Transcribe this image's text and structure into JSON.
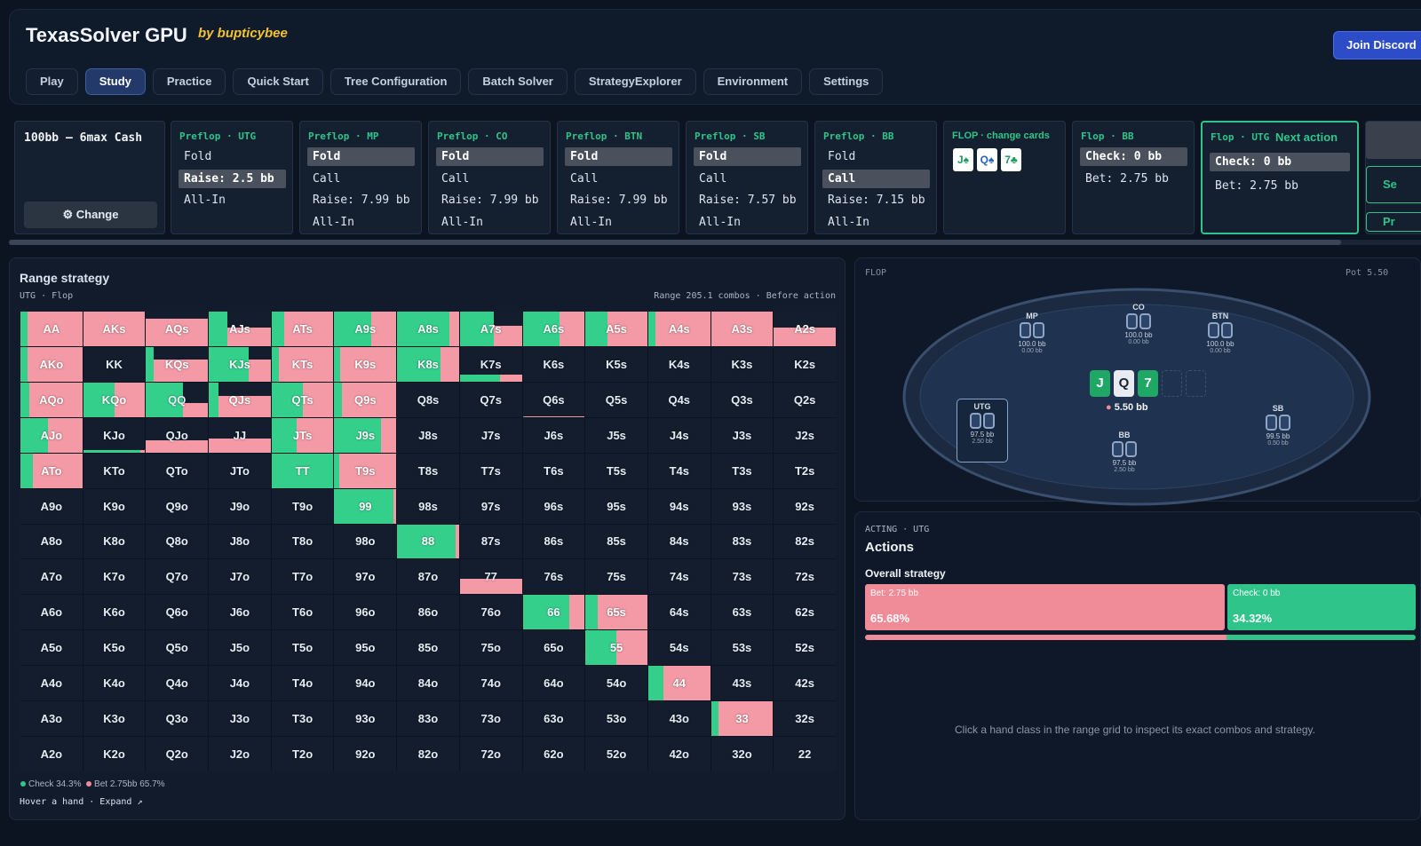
{
  "header": {
    "title": "TexasSolver GPU",
    "byline": "by bupticybee",
    "discord": "Join Discord"
  },
  "nav": [
    "Play",
    "Study",
    "Practice",
    "Quick Start",
    "Tree Configuration",
    "Batch Solver",
    "StrategyExplorer",
    "Environment",
    "Settings"
  ],
  "nav_active": 1,
  "stack": {
    "title": "100bb – 6max Cash",
    "change": "Change",
    "change_icon": "⚙"
  },
  "action_cards": [
    {
      "label": "Preflop · UTG",
      "options": [
        "Fold",
        "Raise: 2.5 bb",
        "All-In"
      ],
      "selected": 1
    },
    {
      "label": "Preflop · MP",
      "options": [
        "Fold",
        "Call",
        "Raise: 7.99 bb",
        "All-In"
      ],
      "selected": 0
    },
    {
      "label": "Preflop · CO",
      "options": [
        "Fold",
        "Call",
        "Raise: 7.99 bb",
        "All-In"
      ],
      "selected": 0
    },
    {
      "label": "Preflop · BTN",
      "options": [
        "Fold",
        "Call",
        "Raise: 7.99 bb",
        "All-In"
      ],
      "selected": 0
    },
    {
      "label": "Preflop · SB",
      "options": [
        "Fold",
        "Call",
        "Raise: 7.57 bb",
        "All-In"
      ],
      "selected": 0
    },
    {
      "label": "Preflop · BB",
      "options": [
        "Fold",
        "Call",
        "Raise: 7.15 bb",
        "All-In"
      ],
      "selected": 1
    }
  ],
  "flop_card": {
    "label": "FLOP · change cards",
    "cards": [
      {
        "t": "J♠",
        "c": "#1a9a5c"
      },
      {
        "t": "Q♠",
        "c": "#2a62b8"
      },
      {
        "t": "7♣",
        "c": "#1a9a5c"
      }
    ]
  },
  "flop_bb": {
    "label": "Flop · BB",
    "options": [
      "Check: 0 bb",
      "Bet: 2.75 bb"
    ],
    "selected": 0
  },
  "flop_utg": {
    "label": "Flop · UTG",
    "next": "Next action",
    "options": [
      "Check: 0 bb",
      "Bet: 2.75 bb"
    ],
    "selected": 0
  },
  "partial_buttons": [
    "Se",
    "Pr"
  ],
  "range": {
    "title": "Range strategy",
    "sub": "UTG · Flop",
    "info": "Range 205.1 combos · Before action",
    "legend": [
      {
        "text": "Check 34.3%",
        "color": "#2fc48a"
      },
      {
        "text": "Bet 2.75bb 65.7%",
        "color": "#f08b98"
      }
    ],
    "hint": "Hover a hand · Expand ↗"
  },
  "colors": {
    "check": "#35cf8c",
    "bet": "#f39aa6"
  },
  "range_mix": {
    "AA": [
      0,
      0.12,
      0
    ],
    "AKs": [
      0,
      0,
      0
    ],
    "AQs": [
      0,
      0,
      0.2
    ],
    "AJs": [
      0,
      0.3,
      0.45
    ],
    "ATs": [
      0,
      0.2,
      0
    ],
    "A9s": [
      0,
      0.6,
      0
    ],
    "A8s": [
      0,
      0.85,
      0
    ],
    "A7s": [
      0,
      0.55,
      0.4
    ],
    "A6s": [
      0,
      0.6,
      0
    ],
    "A5s": [
      0,
      0.35,
      0
    ],
    "A4s": [
      0,
      0.12,
      0
    ],
    "A3s": [
      0,
      0,
      0
    ],
    "A2s": [
      0,
      0,
      0.45
    ],
    "AKo": [
      0,
      0.12,
      0
    ],
    "KQs": [
      0,
      0.12,
      0.35
    ],
    "KJs": [
      0,
      0.65,
      0.35
    ],
    "KTs": [
      0,
      0.12,
      0
    ],
    "K9s": [
      0,
      0.1,
      0
    ],
    "K8s": [
      0,
      0.7,
      0
    ],
    "K7s": [
      2,
      0.65,
      0.2
    ],
    "AQo": [
      0,
      0.15,
      0
    ],
    "KQo": [
      0,
      0.5,
      0
    ],
    "QQ": [
      1,
      0.6,
      0.4
    ],
    "QJs": [
      0,
      0.15,
      0.4
    ],
    "QTs": [
      0,
      0.5,
      0
    ],
    "Q9s": [
      0,
      0.12,
      0
    ],
    "Q6s": [
      2,
      0.03,
      0.02
    ],
    "AJo": [
      0,
      0.45,
      0
    ],
    "KJo": [
      2,
      0.92,
      0.08
    ],
    "QJo": [
      1,
      0.0,
      0.35
    ],
    "JJ": [
      1,
      0.0,
      0.4
    ],
    "JTs": [
      0,
      0.4,
      0
    ],
    "J9s": [
      0,
      0.75,
      0
    ],
    "ATo": [
      0,
      0.2,
      0
    ],
    "TT": [
      0,
      1,
      0
    ],
    "T9s": [
      0,
      0.08,
      0
    ],
    "99": [
      0,
      0.95,
      0
    ],
    "88": [
      0,
      0.95,
      0
    ],
    "77": [
      1,
      0.0,
      0.45
    ],
    "66": [
      0,
      0.75,
      0
    ],
    "65s": [
      0,
      0.2,
      0
    ],
    "55": [
      0,
      0.5,
      0
    ],
    "44": [
      0,
      0.25,
      0
    ],
    "33": [
      0,
      0.12,
      0
    ]
  },
  "table": {
    "flop": "FLOP",
    "pot": "Pot 5.50",
    "board": [
      {
        "t": "J",
        "c": "#1ea765"
      },
      {
        "t": "Q",
        "c": "#ffffff"
      },
      {
        "t": "7",
        "c": "#1ea765"
      }
    ],
    "pot_amount": "5.50 bb",
    "seats": [
      {
        "name": "MP",
        "stack": "100.0 bb",
        "inv": "0.00 bb"
      },
      {
        "name": "CO",
        "stack": "100.0 bb",
        "inv": "0.00 bb"
      },
      {
        "name": "BTN",
        "stack": "100.0 bb",
        "inv": "0.00 bb"
      },
      {
        "name": "UTG",
        "stack": "97.5 bb",
        "inv": "2.50 bb"
      },
      {
        "name": "BB",
        "stack": "97.5 bb",
        "inv": "2.50 bb"
      },
      {
        "name": "SB",
        "stack": "99.5 bb",
        "inv": "0.50 bb"
      }
    ]
  },
  "actions": {
    "acting": "ACTING · UTG",
    "title": "Actions",
    "overall": "Overall strategy",
    "bet": {
      "label": "Bet: 2.75 bb",
      "pct": "65.68%",
      "value": 65.68
    },
    "check": {
      "label": "Check: 0 bb",
      "pct": "34.32%",
      "value": 34.32
    },
    "inspect": "Click a hand class in the range grid to inspect its exact combos and strategy."
  }
}
